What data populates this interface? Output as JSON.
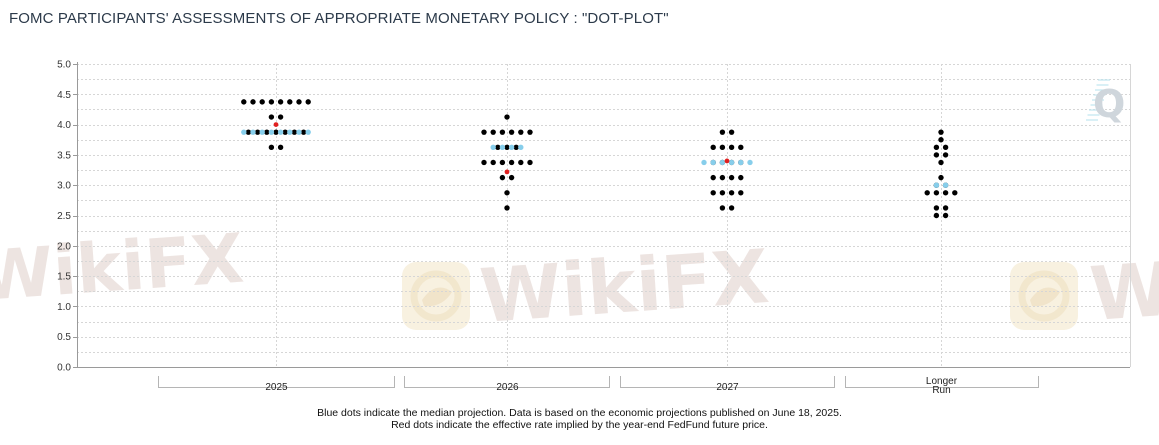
{
  "chart_data": {
    "type": "scatter",
    "title": "FOMC PARTICIPANTS' ASSESSMENTS OF APPROPRIATE MONETARY POLICY : \"DOT-PLOT\"",
    "xlabel": "",
    "ylabel": "",
    "ylim": [
      0.0,
      5.0
    ],
    "yticks": [
      "0.0",
      "0.5",
      "1.0",
      "1.5",
      "2.0",
      "2.5",
      "3.0",
      "3.5",
      "4.0",
      "4.5",
      "5.0"
    ],
    "grid": true,
    "categories": [
      {
        "label": "2025",
        "label_lines": [
          "2025"
        ]
      },
      {
        "label": "2026",
        "label_lines": [
          "2026"
        ]
      },
      {
        "label": "2027",
        "label_lines": [
          "2027"
        ]
      },
      {
        "label": "Longer Run",
        "label_lines": [
          "Longer",
          "Run"
        ]
      }
    ],
    "series": [
      {
        "type": "participants",
        "color": "#000000",
        "points": [
          {
            "category": "2025",
            "values": [
              {
                "y": 4.375,
                "count": 8
              },
              {
                "y": 4.125,
                "count": 2
              },
              {
                "y": 3.875,
                "count": 7
              },
              {
                "y": 3.625,
                "count": 2
              }
            ]
          },
          {
            "category": "2026",
            "values": [
              {
                "y": 4.125,
                "count": 1
              },
              {
                "y": 3.875,
                "count": 6
              },
              {
                "y": 3.625,
                "count": 3
              },
              {
                "y": 3.375,
                "count": 6
              },
              {
                "y": 3.125,
                "count": 2
              },
              {
                "y": 2.875,
                "count": 1
              },
              {
                "y": 2.625,
                "count": 1
              }
            ]
          },
          {
            "category": "2027",
            "values": [
              {
                "y": 3.875,
                "count": 2
              },
              {
                "y": 3.625,
                "count": 4
              },
              {
                "y": 3.375,
                "count": 4
              },
              {
                "y": 3.125,
                "count": 4
              },
              {
                "y": 2.875,
                "count": 4
              },
              {
                "y": 2.625,
                "count": 2
              }
            ]
          },
          {
            "category": "Longer Run",
            "values": [
              {
                "y": 3.875,
                "count": 1
              },
              {
                "y": 3.75,
                "count": 1
              },
              {
                "y": 3.625,
                "count": 2
              },
              {
                "y": 3.5,
                "count": 2
              },
              {
                "y": 3.375,
                "count": 1
              },
              {
                "y": 3.125,
                "count": 1
              },
              {
                "y": 3.0,
                "count": 2
              },
              {
                "y": 2.875,
                "count": 4
              },
              {
                "y": 2.625,
                "count": 2
              },
              {
                "y": 2.5,
                "count": 2
              }
            ]
          }
        ]
      },
      {
        "type": "median",
        "color": "#87ceeb",
        "points": [
          {
            "category": "2025",
            "y": 3.875,
            "count": 8
          },
          {
            "category": "2026",
            "y": 3.625,
            "count": 4
          },
          {
            "category": "2027",
            "y": 3.375,
            "count": 6
          },
          {
            "category": "Longer Run",
            "y": 3.0,
            "count": 2
          }
        ]
      },
      {
        "type": "effective-rate",
        "color": "#e02020",
        "points": [
          {
            "category": "2025",
            "y": 4.0
          },
          {
            "category": "2026",
            "y": 3.22
          },
          {
            "category": "2027",
            "y": 3.4
          }
        ]
      }
    ]
  },
  "footnote": {
    "line1": "Blue dots indicate the median projection. Data is based on the economic projections published on June 18, 2025.",
    "line2": "Red dots indicate the effective rate implied by the year-end FedFund future price."
  },
  "colors": {
    "grid": "#d6d6d6",
    "axis": "#9a9a9a",
    "watermark": "#e8dcd8"
  }
}
